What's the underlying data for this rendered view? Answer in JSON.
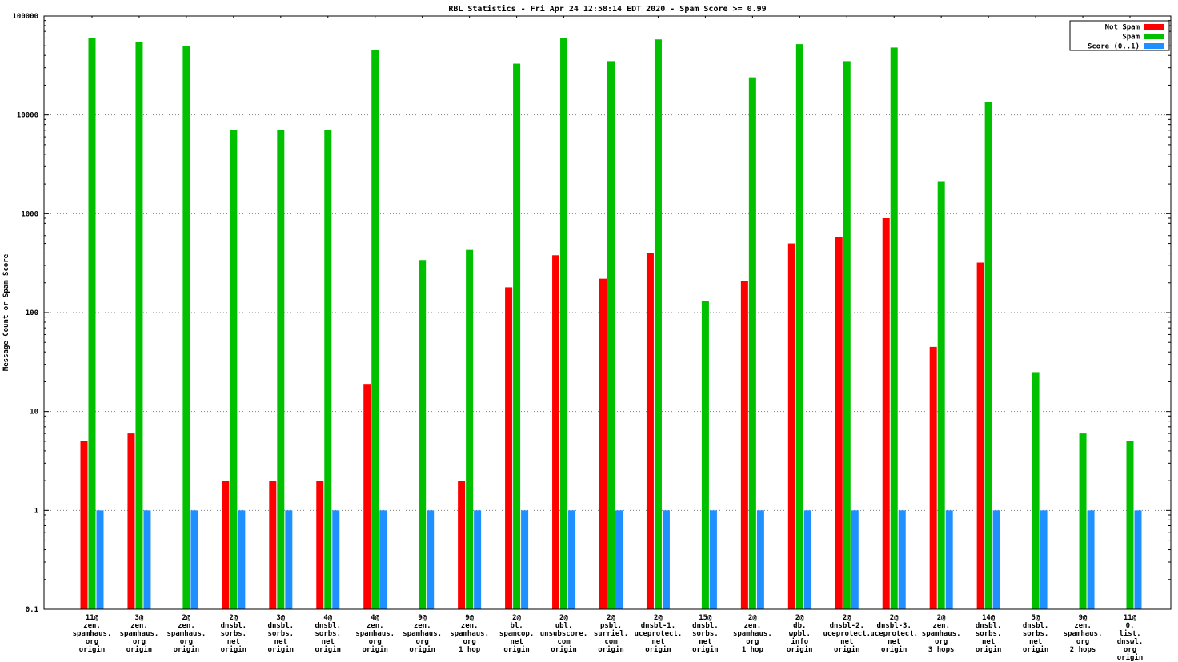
{
  "chart_data": {
    "type": "bar",
    "title": "RBL Statistics - Fri Apr 24 12:58:14 EDT 2020 - Spam Score >= 0.99",
    "ylabel": "Message Count or Spam Score",
    "y_scale": "log",
    "ylim": [
      0.1,
      100000
    ],
    "grid": "horizontal-dotted",
    "legend_position": "top-right-boxed",
    "y_ticks": [
      {
        "label": "100000",
        "value": 100000
      },
      {
        "label": "10000",
        "value": 10000
      },
      {
        "label": "1000",
        "value": 1000
      },
      {
        "label": "100",
        "value": 100
      },
      {
        "label": "10",
        "value": 10
      },
      {
        "label": "1",
        "value": 1
      },
      {
        "label": "0.1",
        "value": 0.1
      }
    ],
    "categories": [
      [
        "11@",
        "zen.",
        "spamhaus.",
        "org",
        "origin"
      ],
      [
        "3@",
        "zen.",
        "spamhaus.",
        "org",
        "origin"
      ],
      [
        "2@",
        "zen.",
        "spamhaus.",
        "org",
        "origin"
      ],
      [
        "2@",
        "dnsbl.",
        "sorbs.",
        "net",
        "origin"
      ],
      [
        "3@",
        "dnsbl.",
        "sorbs.",
        "net",
        "origin"
      ],
      [
        "4@",
        "dnsbl.",
        "sorbs.",
        "net",
        "origin"
      ],
      [
        "4@",
        "zen.",
        "spamhaus.",
        "org",
        "origin"
      ],
      [
        "9@",
        "zen.",
        "spamhaus.",
        "org",
        "origin"
      ],
      [
        "9@",
        "zen.",
        "spamhaus.",
        "org",
        "1 hop"
      ],
      [
        "2@",
        "bl.",
        "spamcop.",
        "net",
        "origin"
      ],
      [
        "2@",
        "ubl.",
        "unsubscore.",
        "com",
        "origin"
      ],
      [
        "2@",
        "psbl.",
        "surriel.",
        "com",
        "origin"
      ],
      [
        "2@",
        "dnsbl-1.",
        "uceprotect.",
        "net",
        "origin"
      ],
      [
        "15@",
        "dnsbl.",
        "sorbs.",
        "net",
        "origin"
      ],
      [
        "2@",
        "zen.",
        "spamhaus.",
        "org",
        "1 hop"
      ],
      [
        "2@",
        "db.",
        "wpbl.",
        "info",
        "origin"
      ],
      [
        "2@",
        "dnsbl-2.",
        "uceprotect.",
        "net",
        "origin"
      ],
      [
        "2@",
        "dnsbl-3.",
        "uceprotect.",
        "net",
        "origin"
      ],
      [
        "2@",
        "zen.",
        "spamhaus.",
        "org",
        "3 hops"
      ],
      [
        "14@",
        "dnsbl.",
        "sorbs.",
        "net",
        "origin"
      ],
      [
        "5@",
        "dnsbl.",
        "sorbs.",
        "net",
        "origin"
      ],
      [
        "9@",
        "zen.",
        "spamhaus.",
        "org",
        "2 hops"
      ],
      [
        "11@",
        "0.",
        "list.",
        "dnswl.",
        "org",
        "origin"
      ]
    ],
    "series": [
      {
        "name": "Not Spam",
        "color": "#ff0000",
        "values": [
          5,
          6,
          null,
          2,
          2,
          2,
          19,
          null,
          2,
          180,
          380,
          220,
          400,
          null,
          210,
          500,
          580,
          900,
          45,
          320,
          null,
          null,
          null
        ]
      },
      {
        "name": "Spam",
        "color": "#00c000",
        "values": [
          60000,
          55000,
          50000,
          7000,
          7000,
          7000,
          45000,
          340,
          430,
          33000,
          60000,
          35000,
          58000,
          130,
          24000,
          52000,
          35000,
          48000,
          2100,
          13500,
          25,
          6,
          5
        ]
      },
      {
        "name": "Score (0..1)",
        "color": "#1e90ff",
        "values": [
          1,
          1,
          1,
          1,
          1,
          1,
          1,
          1,
          1,
          1,
          1,
          1,
          1,
          1,
          1,
          1,
          1,
          1,
          1,
          1,
          1,
          1,
          1
        ]
      }
    ]
  }
}
